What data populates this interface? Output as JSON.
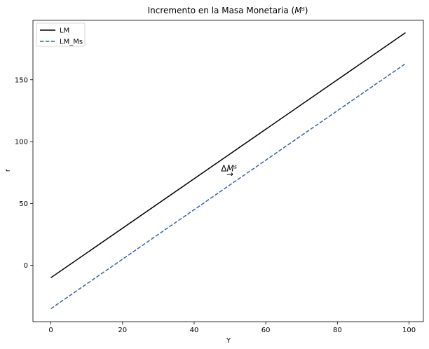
{
  "chart_data": {
    "type": "line",
    "title": "Incremento en la Masa Monetaria (M^s)",
    "title_parts": {
      "main": "Incremento en la Masa Monetaria (",
      "var": "M",
      "sup": "s",
      "close": ")"
    },
    "xlabel": "Y",
    "ylabel": "r",
    "xlim": [
      -5,
      104
    ],
    "ylim": [
      -45.5,
      198
    ],
    "xticks": [
      0,
      20,
      40,
      60,
      80,
      100
    ],
    "yticks": [
      0,
      50,
      100,
      150
    ],
    "grid": false,
    "legend_position": "top-left",
    "series": [
      {
        "name": "LM",
        "x": [
          0,
          99
        ],
        "y": [
          -10,
          188
        ],
        "color": "#000000",
        "style": "solid"
      },
      {
        "name": "LM_Ms",
        "x": [
          0,
          99
        ],
        "y": [
          -35,
          163
        ],
        "color": "#3a5fb0",
        "style": "dashed"
      }
    ],
    "annotations": [
      {
        "text": "ΔM^s",
        "parts": {
          "delta": "Δ",
          "var": "M",
          "sup": "s"
        },
        "x": 47.5,
        "y": 76
      },
      {
        "text": "→",
        "x": 50,
        "y": 73
      }
    ]
  }
}
